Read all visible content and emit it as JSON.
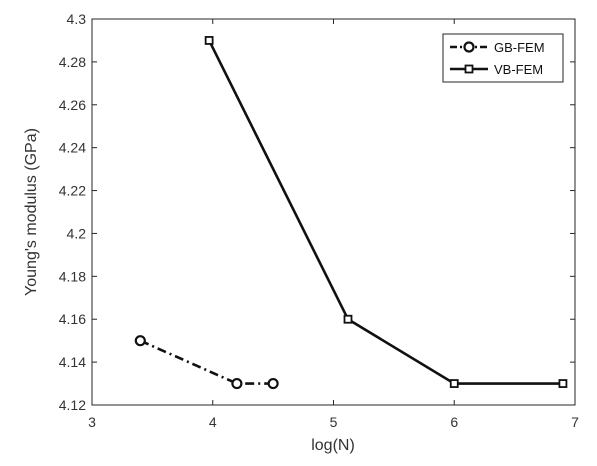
{
  "chart_data": {
    "type": "line",
    "title": "",
    "xlabel": "log(N)",
    "ylabel": "Young's modulus (GPa)",
    "xlim": [
      3,
      7
    ],
    "ylim": [
      4.12,
      4.3
    ],
    "xticks": [
      3,
      4,
      5,
      6,
      7
    ],
    "yticks": [
      4.12,
      4.14,
      4.16,
      4.18,
      4.2,
      4.22,
      4.24,
      4.26,
      4.28,
      4.3
    ],
    "xtick_labels": [
      "3",
      "4",
      "5",
      "6",
      "7"
    ],
    "ytick_labels": [
      "4.12",
      "4.14",
      "4.16",
      "4.18",
      "4.2",
      "4.22",
      "4.24",
      "4.26",
      "4.28",
      "4.3"
    ],
    "grid": false,
    "legend_position": "top-right",
    "series": [
      {
        "name": "GB-FEM",
        "line_style": "dash-dot",
        "marker": "circle",
        "color": "#111111",
        "x": [
          3.4,
          4.2,
          4.5
        ],
        "y": [
          4.15,
          4.13,
          4.13
        ]
      },
      {
        "name": "VB-FEM",
        "line_style": "solid",
        "marker": "square",
        "color": "#111111",
        "x": [
          3.97,
          5.12,
          6.0,
          6.9
        ],
        "y": [
          4.29,
          4.16,
          4.13,
          4.13
        ]
      }
    ]
  }
}
